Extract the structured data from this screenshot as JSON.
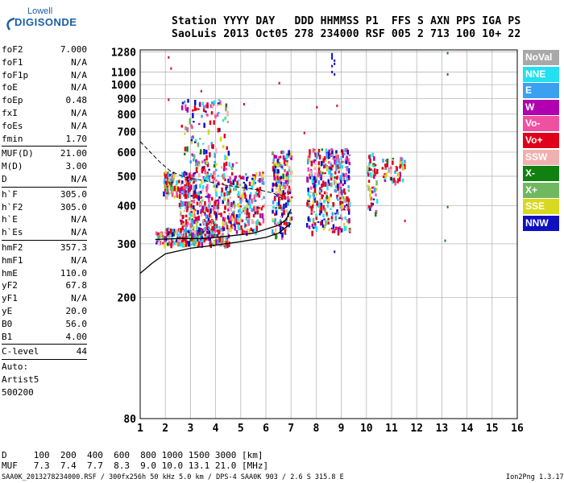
{
  "logo": {
    "top": "Lowell",
    "bottom": "DIGISONDE"
  },
  "header": {
    "line1": "Station YYYY DAY   DDD HHMMSS P1  FFS S AXN PPS IGA PS",
    "line2": "SaoLuis 2013 Oct05 278 234000 RSF 005 2 713 100 10+ 22"
  },
  "params_groups": [
    [
      {
        "name": "foF2",
        "value": "7.000"
      },
      {
        "name": "foF1",
        "value": "N/A"
      },
      {
        "name": "foF1p",
        "value": "N/A"
      },
      {
        "name": "foE",
        "value": "N/A"
      },
      {
        "name": "foEp",
        "value": "0.48"
      },
      {
        "name": "fxI",
        "value": "N/A"
      },
      {
        "name": "foEs",
        "value": "N/A"
      },
      {
        "name": "fmin",
        "value": "1.70"
      }
    ],
    [
      {
        "name": "MUF(D)",
        "value": "21.00"
      },
      {
        "name": "M(D)",
        "value": "3.00"
      },
      {
        "name": "D",
        "value": "N/A"
      }
    ],
    [
      {
        "name": "h`F",
        "value": "305.0"
      },
      {
        "name": "h`F2",
        "value": "305.0"
      },
      {
        "name": "h`E",
        "value": "N/A"
      },
      {
        "name": "h`Es",
        "value": "N/A"
      }
    ],
    [
      {
        "name": "hmF2",
        "value": "357.3"
      },
      {
        "name": "hmF1",
        "value": "N/A"
      },
      {
        "name": "hmE",
        "value": "110.0"
      },
      {
        "name": "yF2",
        "value": "67.8"
      },
      {
        "name": "yF1",
        "value": "N/A"
      },
      {
        "name": "yE",
        "value": "20.0"
      },
      {
        "name": "B0",
        "value": "56.0"
      },
      {
        "name": "B1",
        "value": "4.00"
      }
    ],
    [
      {
        "name": "C-level",
        "value": "44"
      }
    ],
    [
      {
        "name": "Auto:",
        "value": ""
      },
      {
        "name": "Artist5",
        "value": ""
      },
      {
        "name": "500200",
        "value": ""
      }
    ]
  ],
  "legend": [
    {
      "label": "NoVal",
      "color": "#a8a8a8"
    },
    {
      "label": "NNE",
      "color": "#22e0f0"
    },
    {
      "label": "E",
      "color": "#3aa0f0"
    },
    {
      "label": "W",
      "color": "#b000b0"
    },
    {
      "label": "Vo-",
      "color": "#f050a0"
    },
    {
      "label": "Vo+",
      "color": "#e0001c"
    },
    {
      "label": "SSW",
      "color": "#f0b0b0"
    },
    {
      "label": "X-",
      "color": "#108010"
    },
    {
      "label": "X+",
      "color": "#70b860"
    },
    {
      "label": "SSE",
      "color": "#d8d820"
    },
    {
      "label": "NNW",
      "color": "#1010c0"
    }
  ],
  "bottom_table": {
    "d_line": "D     100  200  400  600  800 1000 1500 3000 [km]",
    "muf_line": "MUF   7.3  7.4  7.7  8.3  9.0 10.0 13.1 21.0 [MHz]"
  },
  "footer": "SAA0K_2013278234000.RSF / 300fx256h 50 kHz 5.0 km / DPS-4 SAA0K 903 / 2.6 S 315.8 E",
  "version": "Ion2Png 1.3.17",
  "chart_data": {
    "type": "scatter",
    "title": "",
    "xlabel": "",
    "ylabel": "",
    "x_range": [
      1,
      16
    ],
    "y_range": [
      80,
      1300
    ],
    "y_scale": "log",
    "x_ticks": [
      1,
      2,
      3,
      4,
      5,
      6,
      7,
      8,
      9,
      10,
      11,
      12,
      13,
      14,
      15,
      16
    ],
    "y_ticks": [
      80,
      200,
      300,
      400,
      500,
      600,
      700,
      800,
      900,
      1000,
      1100,
      1280
    ],
    "grid": true,
    "echo_clusters": [
      {
        "x": [
          1.6,
          2.0
        ],
        "y": [
          300,
          330
        ],
        "weight": 30
      },
      {
        "x": [
          1.9,
          3.0
        ],
        "y": [
          430,
          520
        ],
        "weight": 120
      },
      {
        "x": [
          2.0,
          4.5
        ],
        "y": [
          300,
          340
        ],
        "weight": 260
      },
      {
        "x": [
          2.5,
          4.8
        ],
        "y": [
          340,
          420
        ],
        "weight": 200
      },
      {
        "x": [
          3.0,
          4.8
        ],
        "y": [
          420,
          560
        ],
        "weight": 140
      },
      {
        "x": [
          2.6,
          4.5
        ],
        "y": [
          560,
          900
        ],
        "weight": 110
      },
      {
        "x": [
          4.8,
          5.9
        ],
        "y": [
          330,
          520
        ],
        "weight": 160
      },
      {
        "x": [
          6.2,
          7.0
        ],
        "y": [
          320,
          610
        ],
        "weight": 200
      },
      {
        "x": [
          7.6,
          9.3
        ],
        "y": [
          330,
          620
        ],
        "weight": 360
      },
      {
        "x": [
          10.0,
          10.4
        ],
        "y": [
          380,
          600
        ],
        "weight": 50
      },
      {
        "x": [
          10.6,
          11.5
        ],
        "y": [
          480,
          580
        ],
        "weight": 50
      }
    ],
    "sparse_echoes": [
      {
        "x": 2.1,
        "y": 1240
      },
      {
        "x": 2.2,
        "y": 1140
      },
      {
        "x": 2.1,
        "y": 900
      },
      {
        "x": 3.4,
        "y": 960
      },
      {
        "x": 5.1,
        "y": 870
      },
      {
        "x": 6.5,
        "y": 1020
      },
      {
        "x": 8.6,
        "y": 1270
      },
      {
        "x": 8.6,
        "y": 1250
      },
      {
        "x": 8.6,
        "y": 1230
      },
      {
        "x": 8.7,
        "y": 1210
      },
      {
        "x": 8.7,
        "y": 1180
      },
      {
        "x": 8.6,
        "y": 1160
      },
      {
        "x": 8.6,
        "y": 1110
      },
      {
        "x": 8.7,
        "y": 1090
      },
      {
        "x": 8.8,
        "y": 860
      },
      {
        "x": 13.2,
        "y": 1280
      },
      {
        "x": 13.2,
        "y": 1090
      },
      {
        "x": 13.2,
        "y": 400
      },
      {
        "x": 13.1,
        "y": 310
      },
      {
        "x": 8.7,
        "y": 285
      },
      {
        "x": 11.5,
        "y": 360
      },
      {
        "x": 8.0,
        "y": 850
      },
      {
        "x": 7.5,
        "y": 700
      }
    ],
    "profile_curve": {
      "x": [
        1.0,
        1.5,
        2.0,
        3.0,
        4.0,
        5.0,
        6.0,
        6.5,
        7.0
      ],
      "y": [
        240,
        260,
        278,
        290,
        297,
        305,
        315,
        325,
        350
      ]
    },
    "virtual_height_trace": {
      "x": [
        1.6,
        2.5,
        3.5,
        4.5,
        5.5,
        6.0,
        6.5,
        6.8,
        7.0
      ],
      "y": [
        310,
        312,
        312,
        318,
        325,
        335,
        345,
        360,
        390
      ]
    },
    "dashed_trace": {
      "x": [
        1.0,
        1.4,
        1.8,
        2.2,
        2.8,
        3.5,
        4.2,
        5.0,
        5.8,
        6.3,
        6.7
      ],
      "y": [
        650,
        600,
        555,
        520,
        495,
        485,
        470,
        460,
        450,
        440,
        420
      ]
    }
  }
}
